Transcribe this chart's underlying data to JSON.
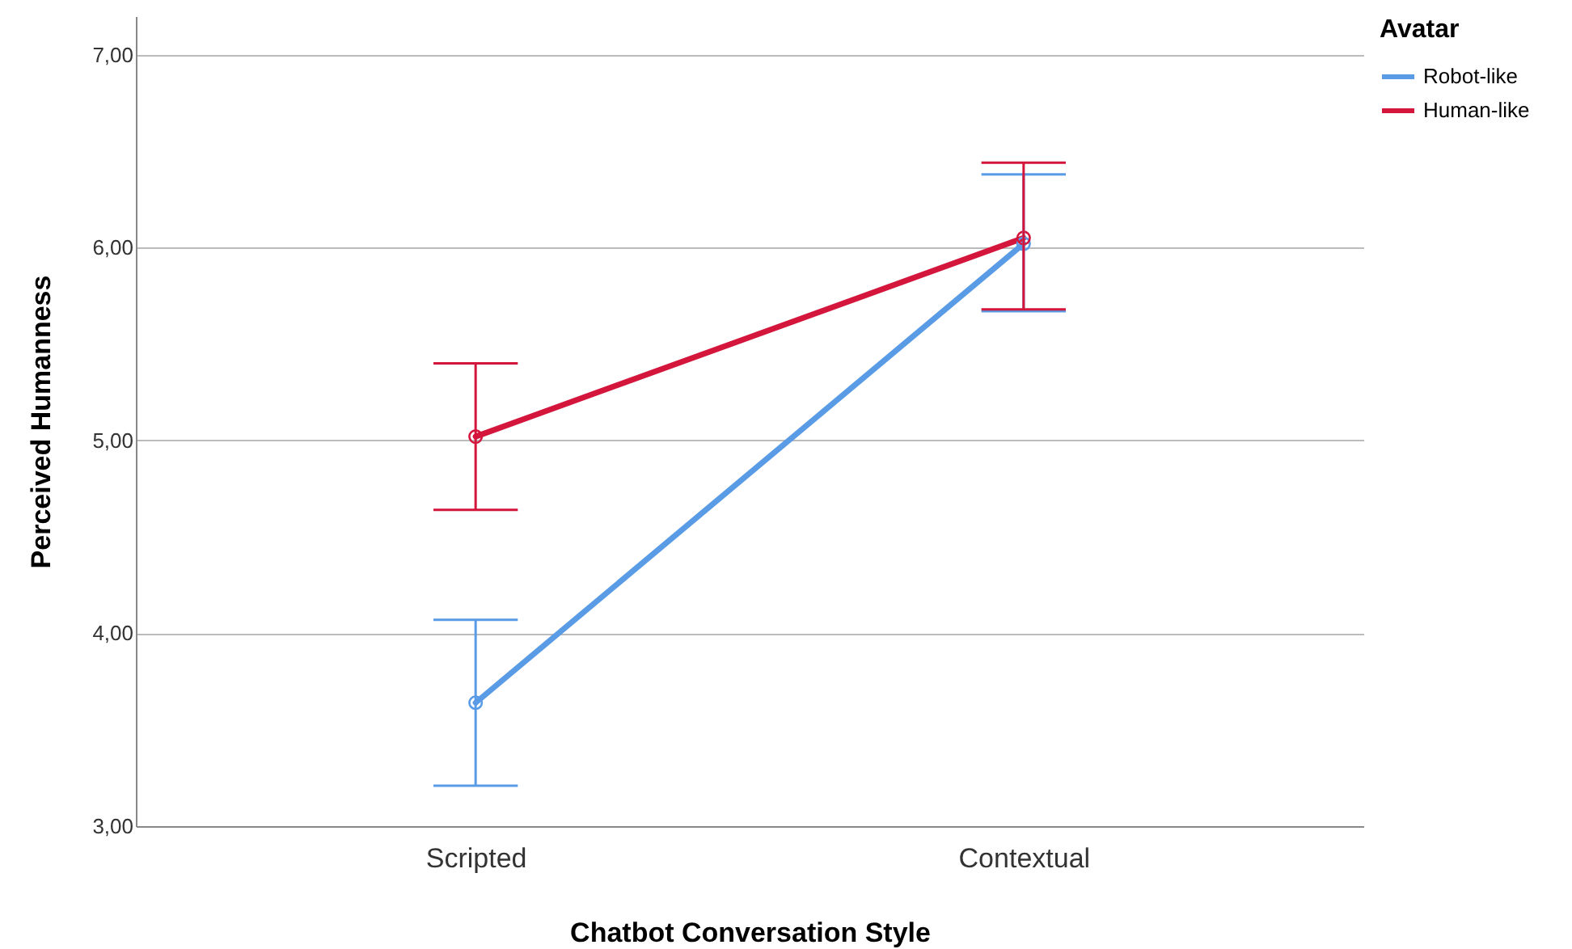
{
  "chart_data": {
    "type": "line",
    "xlabel": "Chatbot Conversation Style",
    "ylabel": "Perceived Humanness",
    "legend_title": "Avatar",
    "categories": [
      "Scripted",
      "Contextual"
    ],
    "series": [
      {
        "name": "Robot-like",
        "color": "#5a9be6",
        "values": [
          3.64,
          6.02
        ],
        "errors": [
          [
            3.21,
            4.07
          ],
          [
            5.67,
            6.38
          ]
        ]
      },
      {
        "name": "Human-like",
        "color": "#d4163c",
        "values": [
          5.02,
          6.05
        ],
        "errors": [
          [
            4.64,
            5.4
          ],
          [
            5.68,
            6.44
          ]
        ]
      }
    ],
    "ylim": [
      3,
      7.2
    ],
    "yticks": [
      {
        "value": 3,
        "label": "3,00"
      },
      {
        "value": 4,
        "label": "4,00"
      },
      {
        "value": 5,
        "label": "5,00"
      },
      {
        "value": 6,
        "label": "6,00"
      },
      {
        "value": 7,
        "label": "7,00"
      }
    ],
    "grid": "y",
    "legend": "top right",
    "marker": "circle",
    "line_style": "solid"
  }
}
